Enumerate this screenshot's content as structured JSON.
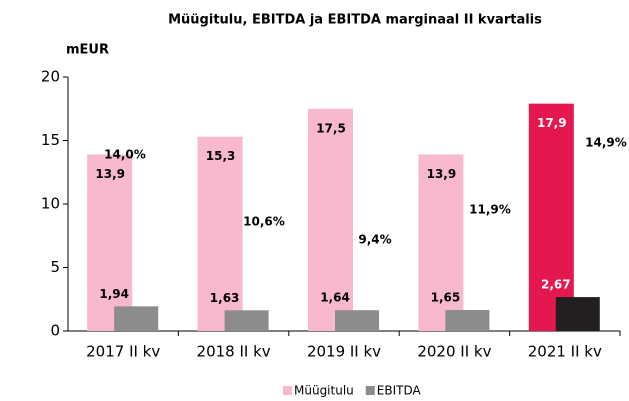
{
  "chart_data": {
    "type": "bar",
    "title": "Müügitulu, EBITDA ja EBITDA marginaal II kvartalis",
    "y_label": "mEUR",
    "categories": [
      "2017 II kv",
      "2018 II kv",
      "2019 II kv",
      "2020 II kv",
      "2021 II kv"
    ],
    "series": [
      {
        "name": "Müügitulu",
        "color": "#f9b9cc",
        "colors": [
          "#f9b9cc",
          "#f9b9cc",
          "#f9b9cc",
          "#f9b9cc",
          "#e5174f"
        ],
        "label_colors": [
          "#000000",
          "#000000",
          "#000000",
          "#000000",
          "#ffffff"
        ],
        "values": [
          13.9,
          15.3,
          17.5,
          13.9,
          17.9
        ],
        "value_labels": [
          "13,9",
          "15,3",
          "17,5",
          "13,9",
          "17,9"
        ]
      },
      {
        "name": "EBITDA",
        "color": "#8c8c8c",
        "colors": [
          "#8c8c8c",
          "#8c8c8c",
          "#8c8c8c",
          "#8c8c8c",
          "#231f20"
        ],
        "label_colors": [
          "#000000",
          "#000000",
          "#000000",
          "#000000",
          "#ffffff"
        ],
        "values": [
          1.94,
          1.63,
          1.64,
          1.65,
          2.67
        ],
        "value_labels": [
          "1,94",
          "1,63",
          "1,64",
          "1,65",
          "2,67"
        ]
      }
    ],
    "annotations": [
      "14,0%",
      "10,6%",
      "9,4%",
      "11,9%",
      "14,9%"
    ],
    "ylim": [
      0,
      20
    ],
    "yticks": [
      0,
      5,
      10,
      15,
      20
    ],
    "grid": false,
    "legend": "bottom"
  }
}
